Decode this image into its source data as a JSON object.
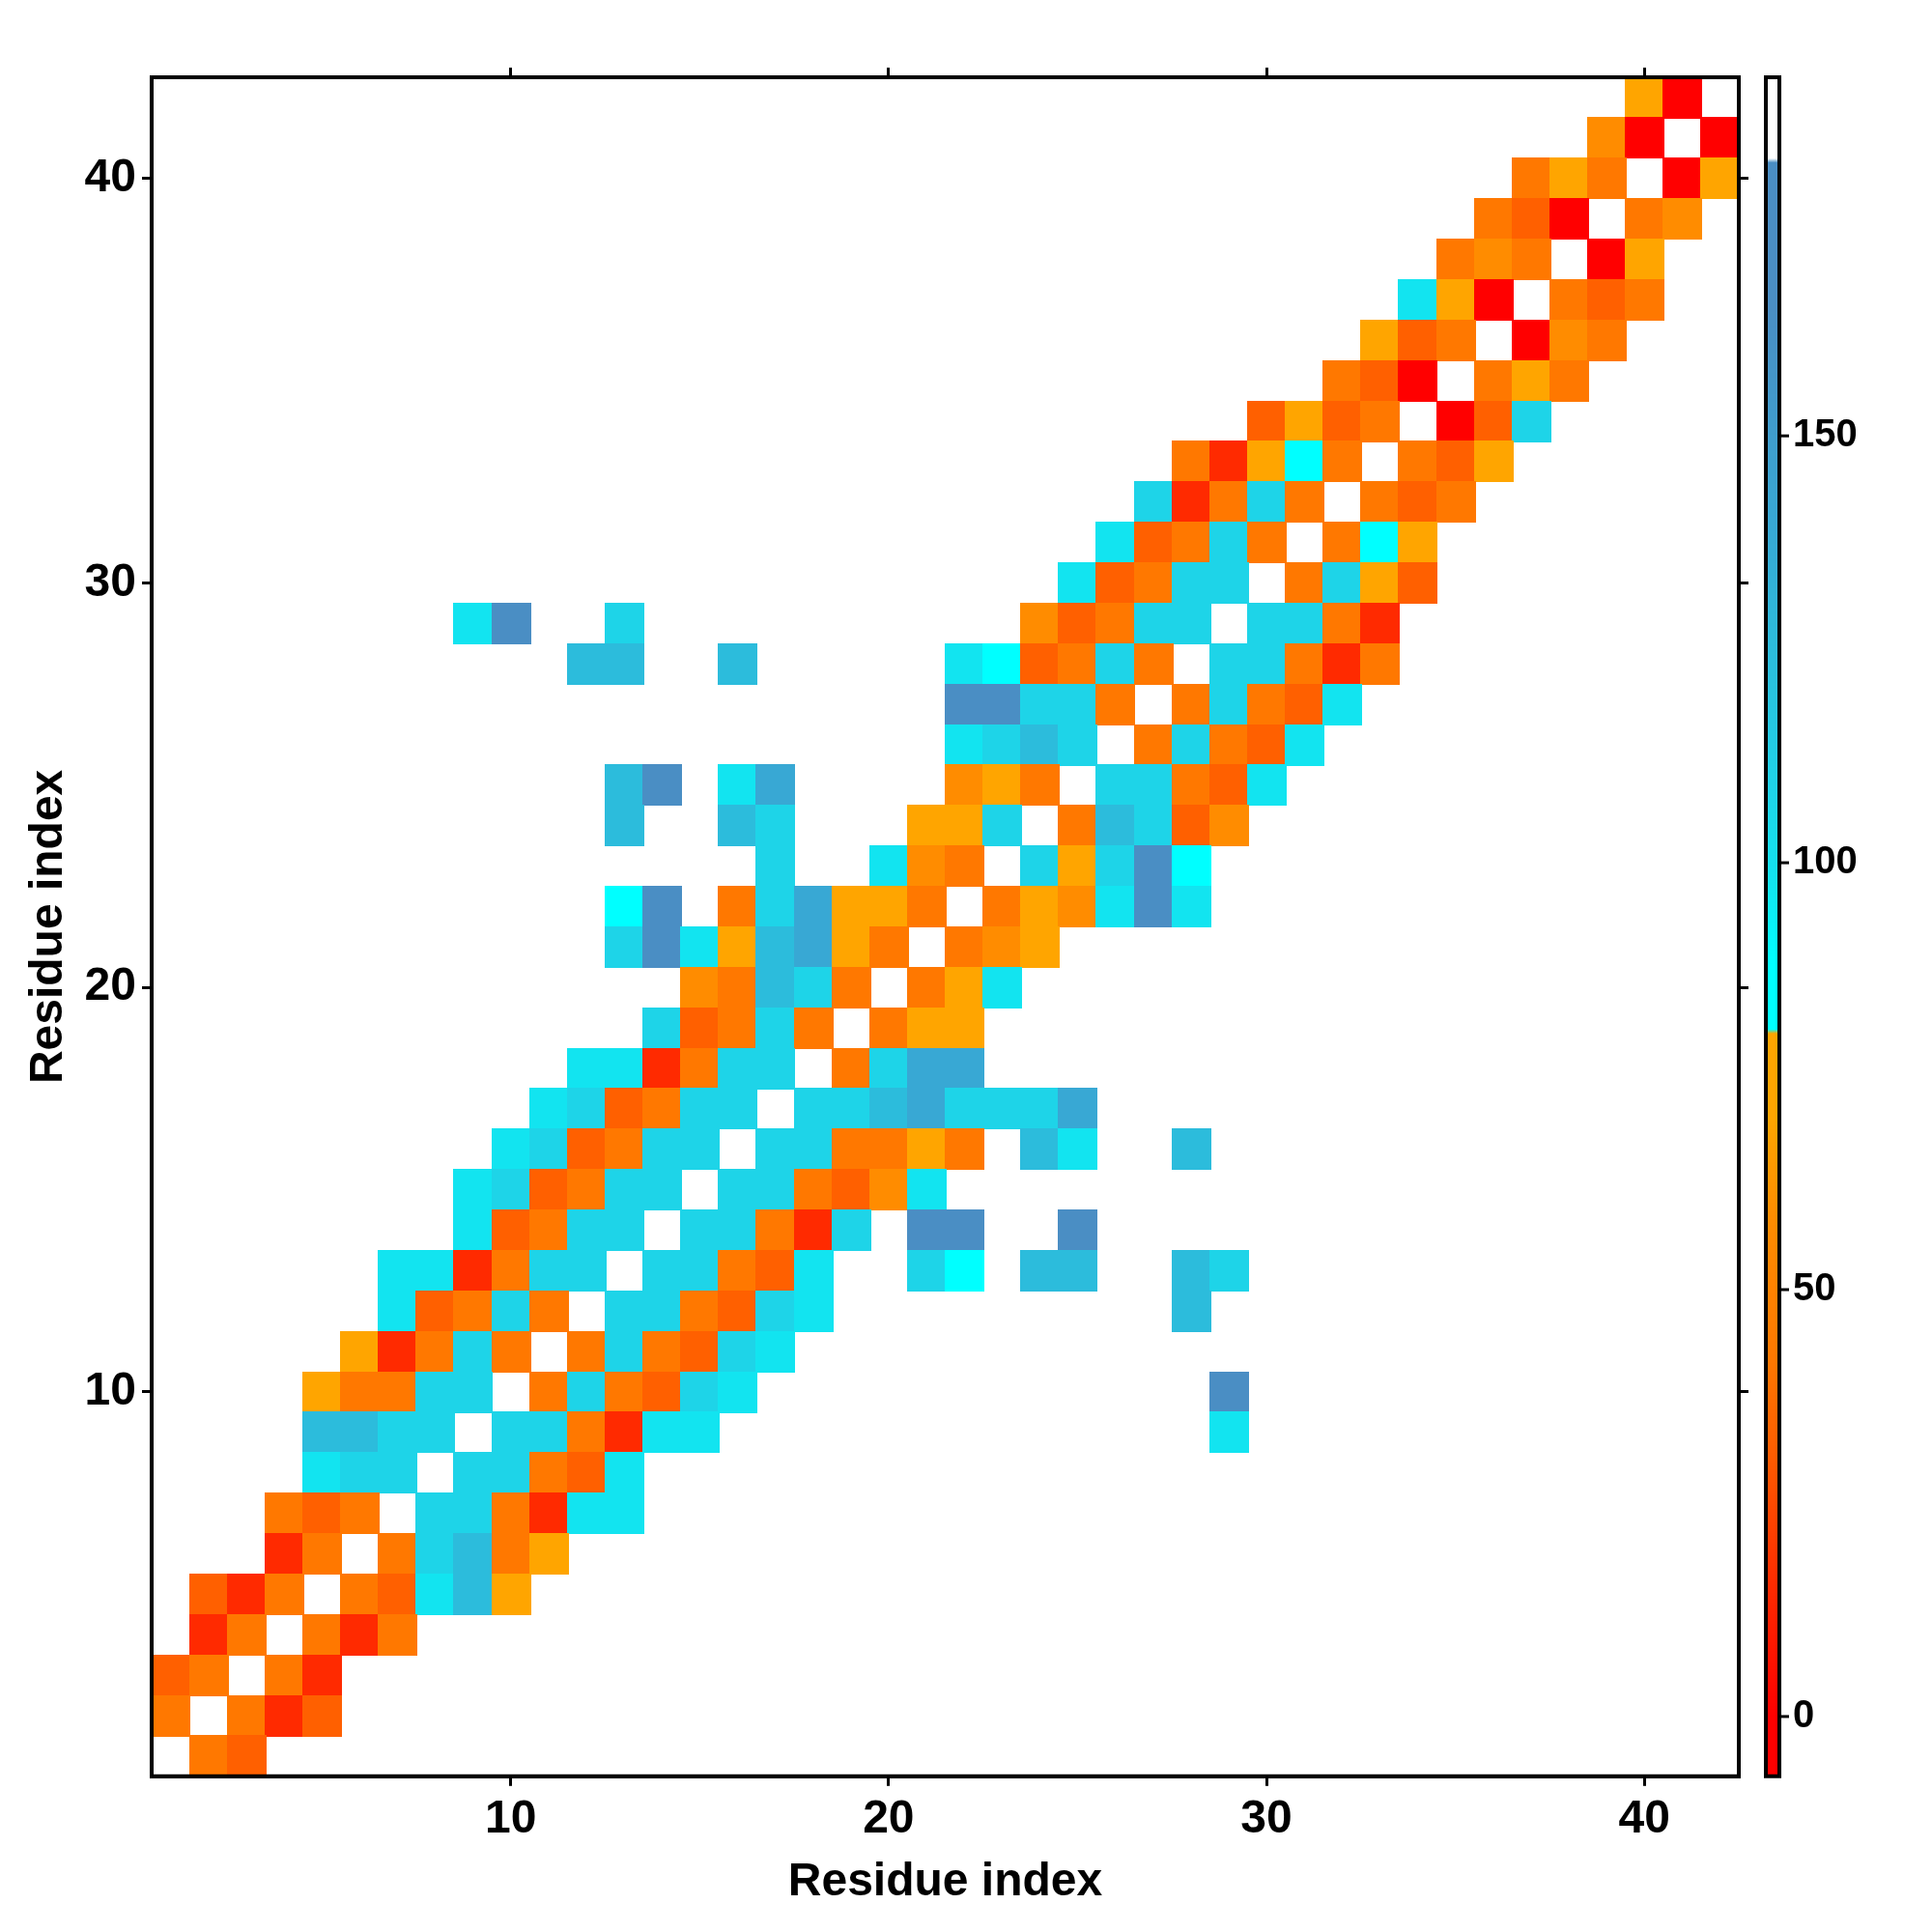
{
  "chart_data": {
    "type": "heatmap",
    "xlabel": "Residue index",
    "ylabel": "Residue index",
    "x": [
      1,
      2,
      3,
      4,
      5,
      6,
      7,
      8,
      9,
      10,
      11,
      12,
      13,
      14,
      15,
      16,
      17,
      18,
      19,
      20,
      21,
      22,
      23,
      24,
      25,
      26,
      27,
      28,
      29,
      30,
      31,
      32,
      33,
      34,
      35,
      36,
      37,
      38,
      39,
      40,
      41,
      42
    ],
    "y": [
      42,
      41,
      40,
      39,
      38,
      37,
      36,
      35,
      34,
      33,
      32,
      31,
      30,
      29,
      28,
      27,
      26,
      25,
      24,
      23,
      22,
      21,
      20,
      19,
      18,
      17,
      16,
      15,
      14,
      13,
      12,
      11,
      10,
      9,
      8,
      7,
      6,
      5,
      4,
      3,
      2,
      1
    ],
    "xlim": [
      0.5,
      42.5
    ],
    "xticks": [
      10,
      20,
      30,
      40
    ],
    "ylim": [
      0.5,
      42.5
    ],
    "yticks": [
      10,
      20,
      30,
      40
    ],
    "clim": [
      -7,
      192
    ],
    "cticks": [
      0,
      50,
      100,
      150
    ],
    "cells": [
      [
        null,
        null,
        null,
        null,
        null,
        null,
        null,
        null,
        null,
        null,
        null,
        null,
        null,
        null,
        null,
        null,
        null,
        null,
        null,
        null,
        null,
        null,
        null,
        null,
        null,
        null,
        null,
        null,
        null,
        null,
        null,
        null,
        null,
        null,
        null,
        null,
        null,
        null,
        null,
        70,
        0,
        null
      ],
      [
        null,
        null,
        null,
        null,
        null,
        null,
        null,
        null,
        null,
        null,
        null,
        null,
        null,
        null,
        null,
        null,
        null,
        null,
        null,
        null,
        null,
        null,
        null,
        null,
        null,
        null,
        null,
        null,
        null,
        null,
        null,
        null,
        null,
        null,
        null,
        null,
        null,
        null,
        58,
        0,
        null,
        0
      ],
      [
        null,
        null,
        null,
        null,
        null,
        null,
        null,
        null,
        null,
        null,
        null,
        null,
        null,
        null,
        null,
        null,
        null,
        null,
        null,
        null,
        null,
        null,
        null,
        null,
        null,
        null,
        null,
        null,
        null,
        null,
        null,
        null,
        null,
        null,
        null,
        null,
        42,
        70,
        42,
        null,
        0,
        70
      ],
      [
        null,
        null,
        null,
        null,
        null,
        null,
        null,
        null,
        null,
        null,
        null,
        null,
        null,
        null,
        null,
        null,
        null,
        null,
        null,
        null,
        null,
        null,
        null,
        null,
        null,
        null,
        null,
        null,
        null,
        null,
        null,
        null,
        null,
        null,
        null,
        42,
        32,
        0,
        null,
        42,
        58,
        null
      ],
      [
        null,
        null,
        null,
        null,
        null,
        null,
        null,
        null,
        null,
        null,
        null,
        null,
        null,
        null,
        null,
        null,
        null,
        null,
        null,
        null,
        null,
        null,
        null,
        null,
        null,
        null,
        null,
        null,
        null,
        null,
        null,
        null,
        null,
        null,
        42,
        58,
        42,
        null,
        0,
        70,
        null,
        null
      ],
      [
        null,
        null,
        null,
        null,
        null,
        null,
        null,
        null,
        null,
        null,
        null,
        null,
        null,
        null,
        null,
        null,
        null,
        null,
        null,
        null,
        null,
        null,
        null,
        null,
        null,
        null,
        null,
        null,
        null,
        null,
        null,
        null,
        null,
        98,
        70,
        0,
        null,
        42,
        32,
        42,
        null,
        null
      ],
      [
        null,
        null,
        null,
        null,
        null,
        null,
        null,
        null,
        null,
        null,
        null,
        null,
        null,
        null,
        null,
        null,
        null,
        null,
        null,
        null,
        null,
        null,
        null,
        null,
        null,
        null,
        null,
        null,
        null,
        null,
        null,
        null,
        70,
        32,
        42,
        null,
        0,
        58,
        42,
        null,
        null,
        null
      ],
      [
        null,
        null,
        null,
        null,
        null,
        null,
        null,
        null,
        null,
        null,
        null,
        null,
        null,
        null,
        null,
        null,
        null,
        null,
        null,
        null,
        null,
        null,
        null,
        null,
        null,
        null,
        null,
        null,
        null,
        null,
        null,
        42,
        32,
        0,
        null,
        42,
        70,
        42,
        null,
        null,
        null,
        null
      ],
      [
        null,
        null,
        null,
        null,
        null,
        null,
        null,
        null,
        null,
        null,
        null,
        null,
        null,
        null,
        null,
        null,
        null,
        null,
        null,
        null,
        null,
        null,
        null,
        null,
        null,
        null,
        null,
        null,
        null,
        32,
        70,
        32,
        42,
        null,
        0,
        32,
        108,
        null,
        null,
        null,
        null,
        null
      ],
      [
        null,
        null,
        null,
        null,
        null,
        null,
        null,
        null,
        null,
        null,
        null,
        null,
        null,
        null,
        null,
        null,
        null,
        null,
        null,
        null,
        null,
        null,
        null,
        null,
        null,
        null,
        null,
        42,
        15,
        70,
        88,
        42,
        null,
        42,
        32,
        70,
        null,
        null,
        null,
        null,
        null,
        null
      ],
      [
        null,
        null,
        null,
        null,
        null,
        null,
        null,
        null,
        null,
        null,
        null,
        null,
        null,
        null,
        null,
        null,
        null,
        null,
        null,
        null,
        null,
        null,
        null,
        null,
        null,
        null,
        108,
        15,
        42,
        108,
        42,
        null,
        42,
        32,
        42,
        null,
        null,
        null,
        null,
        null,
        null,
        null
      ],
      [
        null,
        null,
        null,
        null,
        null,
        null,
        null,
        null,
        null,
        null,
        null,
        null,
        null,
        null,
        null,
        null,
        null,
        null,
        null,
        null,
        null,
        null,
        null,
        null,
        null,
        98,
        32,
        42,
        108,
        42,
        null,
        42,
        88,
        70,
        null,
        null,
        null,
        null,
        null,
        null,
        null,
        null
      ],
      [
        null,
        null,
        null,
        null,
        null,
        null,
        null,
        null,
        null,
        null,
        null,
        null,
        null,
        null,
        null,
        null,
        null,
        null,
        null,
        null,
        null,
        null,
        null,
        null,
        98,
        32,
        42,
        108,
        108,
        null,
        42,
        108,
        70,
        32,
        null,
        null,
        null,
        null,
        null,
        null,
        null,
        null
      ],
      [
        null,
        null,
        null,
        null,
        null,
        null,
        null,
        null,
        98,
        165,
        null,
        null,
        108,
        null,
        null,
        null,
        null,
        null,
        null,
        null,
        null,
        null,
        null,
        58,
        32,
        42,
        108,
        108,
        null,
        108,
        108,
        42,
        15,
        null,
        null,
        null,
        null,
        null,
        null,
        null,
        null,
        null
      ],
      [
        null,
        null,
        null,
        null,
        null,
        null,
        null,
        null,
        null,
        null,
        null,
        125,
        125,
        null,
        null,
        125,
        null,
        null,
        null,
        null,
        null,
        98,
        88,
        32,
        42,
        108,
        42,
        null,
        108,
        108,
        42,
        15,
        42,
        null,
        null,
        null,
        null,
        null,
        null,
        null,
        null,
        null
      ],
      [
        null,
        null,
        null,
        null,
        null,
        null,
        null,
        null,
        null,
        null,
        null,
        null,
        null,
        null,
        null,
        null,
        null,
        null,
        null,
        null,
        null,
        165,
        165,
        108,
        108,
        42,
        null,
        42,
        108,
        42,
        32,
        98,
        null,
        null,
        null,
        null,
        null,
        null,
        null,
        null,
        null,
        null
      ],
      [
        null,
        null,
        null,
        null,
        null,
        null,
        null,
        null,
        null,
        null,
        null,
        null,
        null,
        null,
        null,
        null,
        null,
        null,
        null,
        null,
        null,
        98,
        108,
        125,
        108,
        null,
        42,
        108,
        42,
        32,
        98,
        null,
        null,
        null,
        null,
        null,
        null,
        null,
        null,
        null,
        null,
        null
      ],
      [
        null,
        null,
        null,
        null,
        null,
        null,
        null,
        null,
        null,
        null,
        null,
        null,
        125,
        165,
        null,
        98,
        140,
        null,
        null,
        null,
        null,
        58,
        70,
        42,
        null,
        108,
        108,
        42,
        32,
        98,
        null,
        null,
        null,
        null,
        null,
        null,
        null,
        null,
        null,
        null,
        null,
        null
      ],
      [
        null,
        null,
        null,
        null,
        null,
        null,
        null,
        null,
        null,
        null,
        null,
        null,
        125,
        null,
        null,
        125,
        108,
        null,
        null,
        null,
        70,
        70,
        108,
        null,
        42,
        125,
        108,
        32,
        58,
        null,
        null,
        null,
        null,
        null,
        null,
        null,
        null,
        null,
        null,
        null,
        null,
        null
      ],
      [
        null,
        null,
        null,
        null,
        null,
        null,
        null,
        null,
        null,
        null,
        null,
        null,
        null,
        null,
        null,
        null,
        108,
        null,
        null,
        98,
        58,
        42,
        null,
        108,
        70,
        108,
        165,
        88,
        null,
        null,
        null,
        null,
        null,
        null,
        null,
        null,
        null,
        null,
        null,
        null,
        null,
        null
      ],
      [
        null,
        null,
        null,
        null,
        null,
        null,
        null,
        null,
        null,
        null,
        null,
        null,
        88,
        165,
        null,
        42,
        108,
        140,
        70,
        70,
        42,
        null,
        42,
        70,
        58,
        98,
        165,
        98,
        null,
        null,
        null,
        null,
        null,
        null,
        null,
        null,
        null,
        null,
        null,
        null,
        null,
        null
      ],
      [
        null,
        null,
        null,
        null,
        null,
        null,
        null,
        null,
        null,
        null,
        null,
        null,
        108,
        165,
        98,
        70,
        125,
        140,
        70,
        42,
        null,
        42,
        58,
        70,
        null,
        null,
        null,
        null,
        null,
        null,
        null,
        null,
        null,
        null,
        null,
        null,
        null,
        null,
        null,
        null,
        null,
        null
      ],
      [
        null,
        null,
        null,
        null,
        null,
        null,
        null,
        null,
        null,
        null,
        null,
        null,
        null,
        null,
        58,
        42,
        125,
        108,
        42,
        null,
        42,
        70,
        98,
        null,
        null,
        null,
        null,
        null,
        null,
        null,
        null,
        null,
        null,
        null,
        null,
        null,
        null,
        null,
        null,
        null,
        null,
        null
      ],
      [
        null,
        null,
        null,
        null,
        null,
        null,
        null,
        null,
        null,
        null,
        null,
        null,
        null,
        108,
        32,
        42,
        108,
        42,
        null,
        42,
        70,
        70,
        null,
        null,
        null,
        null,
        null,
        null,
        null,
        null,
        null,
        null,
        null,
        null,
        null,
        null,
        null,
        null,
        null,
        null,
        null,
        null
      ],
      [
        null,
        null,
        null,
        null,
        null,
        null,
        null,
        null,
        null,
        null,
        null,
        98,
        98,
        15,
        42,
        108,
        108,
        null,
        42,
        108,
        140,
        140,
        null,
        null,
        null,
        null,
        null,
        null,
        null,
        null,
        null,
        null,
        null,
        null,
        null,
        null,
        null,
        null,
        null,
        null,
        null,
        null
      ],
      [
        null,
        null,
        null,
        null,
        null,
        null,
        null,
        null,
        null,
        null,
        98,
        108,
        32,
        42,
        108,
        108,
        null,
        108,
        108,
        125,
        140,
        108,
        108,
        108,
        140,
        null,
        null,
        null,
        null,
        null,
        null,
        null,
        null,
        null,
        null,
        null,
        null,
        null,
        null,
        null,
        null,
        null
      ],
      [
        null,
        null,
        null,
        null,
        null,
        null,
        null,
        null,
        null,
        98,
        108,
        32,
        42,
        108,
        108,
        null,
        108,
        108,
        42,
        42,
        70,
        42,
        null,
        125,
        98,
        null,
        null,
        125,
        null,
        null,
        null,
        null,
        null,
        null,
        null,
        null,
        null,
        null,
        null,
        null,
        null,
        null
      ],
      [
        null,
        null,
        null,
        null,
        null,
        null,
        null,
        null,
        98,
        108,
        32,
        42,
        108,
        108,
        null,
        108,
        108,
        42,
        32,
        58,
        98,
        null,
        null,
        null,
        null,
        null,
        null,
        null,
        null,
        null,
        null,
        null,
        null,
        null,
        null,
        null,
        null,
        null,
        null,
        null,
        null,
        null
      ],
      [
        null,
        null,
        null,
        null,
        null,
        null,
        null,
        null,
        98,
        32,
        42,
        108,
        108,
        null,
        108,
        108,
        42,
        15,
        108,
        null,
        165,
        165,
        null,
        null,
        165,
        null,
        null,
        null,
        null,
        null,
        null,
        null,
        null,
        null,
        null,
        null,
        null,
        null,
        null,
        null,
        null,
        null
      ],
      [
        null,
        null,
        null,
        null,
        null,
        null,
        98,
        98,
        15,
        42,
        108,
        108,
        null,
        108,
        108,
        42,
        32,
        98,
        null,
        null,
        108,
        88,
        null,
        125,
        125,
        null,
        null,
        125,
        108,
        null,
        null,
        null,
        null,
        null,
        null,
        null,
        null,
        null,
        null,
        null,
        null,
        null
      ],
      [
        null,
        null,
        null,
        null,
        null,
        null,
        98,
        32,
        42,
        108,
        42,
        null,
        108,
        108,
        42,
        32,
        108,
        98,
        null,
        null,
        null,
        null,
        null,
        null,
        null,
        null,
        null,
        125,
        null,
        null,
        null,
        null,
        null,
        null,
        null,
        null,
        null,
        null,
        null,
        null,
        null,
        null
      ],
      [
        null,
        null,
        null,
        null,
        null,
        70,
        15,
        42,
        108,
        42,
        null,
        42,
        108,
        42,
        32,
        108,
        98,
        null,
        null,
        null,
        null,
        null,
        null,
        null,
        null,
        null,
        null,
        null,
        null,
        null,
        null,
        null,
        null,
        null,
        null,
        null,
        null,
        null,
        null,
        null,
        null,
        null
      ],
      [
        null,
        null,
        null,
        null,
        70,
        42,
        42,
        108,
        108,
        null,
        42,
        108,
        42,
        32,
        108,
        98,
        null,
        null,
        null,
        null,
        null,
        null,
        null,
        null,
        null,
        null,
        null,
        null,
        165,
        null,
        null,
        null,
        null,
        null,
        null,
        null,
        null,
        null,
        null,
        null,
        null,
        null
      ],
      [
        null,
        null,
        null,
        null,
        125,
        125,
        108,
        108,
        null,
        108,
        108,
        42,
        15,
        98,
        98,
        null,
        null,
        null,
        null,
        null,
        null,
        null,
        null,
        null,
        null,
        null,
        null,
        null,
        98,
        null,
        null,
        null,
        null,
        null,
        null,
        null,
        null,
        null,
        null,
        null,
        null,
        null
      ],
      [
        null,
        null,
        null,
        null,
        98,
        108,
        108,
        null,
        108,
        108,
        42,
        32,
        98,
        null,
        null,
        null,
        null,
        null,
        null,
        null,
        null,
        null,
        null,
        null,
        null,
        null,
        null,
        null,
        null,
        null,
        null,
        null,
        null,
        null,
        null,
        null,
        null,
        null,
        null,
        null,
        null,
        null
      ],
      [
        null,
        null,
        null,
        42,
        32,
        42,
        null,
        108,
        108,
        42,
        15,
        98,
        98,
        null,
        null,
        null,
        null,
        null,
        null,
        null,
        null,
        null,
        null,
        null,
        null,
        null,
        null,
        null,
        null,
        null,
        null,
        null,
        null,
        null,
        null,
        null,
        null,
        null,
        null,
        null,
        null,
        null
      ],
      [
        null,
        null,
        null,
        15,
        42,
        null,
        42,
        108,
        125,
        42,
        70,
        null,
        null,
        null,
        null,
        null,
        null,
        null,
        null,
        null,
        null,
        null,
        null,
        null,
        null,
        null,
        null,
        null,
        null,
        null,
        null,
        null,
        null,
        null,
        null,
        null,
        null,
        null,
        null,
        null,
        null,
        null
      ],
      [
        null,
        32,
        15,
        42,
        null,
        42,
        32,
        98,
        125,
        70,
        null,
        null,
        null,
        null,
        null,
        null,
        null,
        null,
        null,
        null,
        null,
        null,
        null,
        null,
        null,
        null,
        null,
        null,
        null,
        null,
        null,
        null,
        null,
        null,
        null,
        null,
        null,
        null,
        null,
        null,
        null,
        null
      ],
      [
        null,
        15,
        42,
        null,
        42,
        15,
        42,
        null,
        null,
        null,
        null,
        null,
        null,
        null,
        null,
        null,
        null,
        null,
        null,
        null,
        null,
        null,
        null,
        null,
        null,
        null,
        null,
        null,
        null,
        null,
        null,
        null,
        null,
        null,
        null,
        null,
        null,
        null,
        null,
        null,
        null,
        null
      ],
      [
        32,
        42,
        null,
        42,
        15,
        null,
        null,
        null,
        null,
        null,
        null,
        null,
        null,
        null,
        null,
        null,
        null,
        null,
        null,
        null,
        null,
        null,
        null,
        null,
        null,
        null,
        null,
        null,
        null,
        null,
        null,
        null,
        null,
        null,
        null,
        null,
        null,
        null,
        null,
        null,
        null,
        null
      ],
      [
        42,
        null,
        42,
        15,
        32,
        null,
        null,
        null,
        null,
        null,
        null,
        null,
        null,
        null,
        null,
        null,
        null,
        null,
        null,
        null,
        null,
        null,
        null,
        null,
        null,
        null,
        null,
        null,
        null,
        null,
        null,
        null,
        null,
        null,
        null,
        null,
        null,
        null,
        null,
        null,
        null,
        null
      ],
      [
        null,
        42,
        32,
        null,
        null,
        null,
        null,
        null,
        null,
        null,
        null,
        null,
        null,
        null,
        null,
        null,
        null,
        null,
        null,
        null,
        null,
        null,
        null,
        null,
        null,
        null,
        null,
        null,
        null,
        null,
        null,
        null,
        null,
        null,
        null,
        null,
        null,
        null,
        null,
        null,
        null,
        null
      ]
    ]
  }
}
